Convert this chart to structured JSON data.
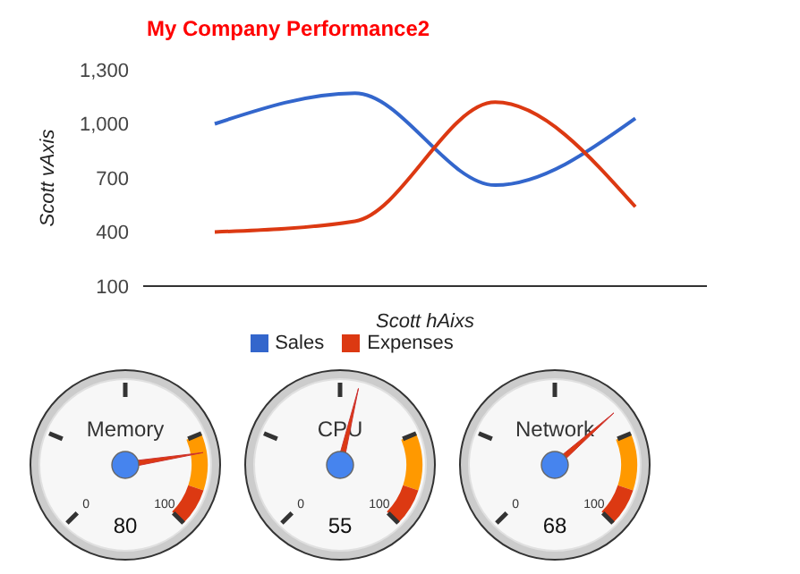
{
  "chart_data": [
    {
      "type": "line",
      "title": "My Company Performance2",
      "xlabel": "Scott hAixs",
      "ylabel": "Scott vAxis",
      "categories": [
        null,
        null,
        null,
        null
      ],
      "series": [
        {
          "name": "Sales",
          "color": "#3366cc",
          "values": [
            1000,
            1170,
            660,
            1030
          ]
        },
        {
          "name": "Expenses",
          "color": "#dc3912",
          "values": [
            400,
            460,
            1120,
            540
          ]
        }
      ],
      "ylim": [
        100,
        1300
      ],
      "yticks": [
        100,
        400,
        700,
        {
          "value": 1000,
          "label": "1,000"
        },
        {
          "value": 1300,
          "label": "1,300"
        }
      ],
      "grid": false,
      "legend": "bottom",
      "marker": "none",
      "line_style": "solid"
    },
    {
      "type": "other",
      "categories": [
        "Memory",
        "CPU",
        "Network"
      ],
      "values": [
        80,
        55,
        68
      ],
      "annotations": [
        "0",
        "100"
      ],
      "data_labels": true
    }
  ]
}
